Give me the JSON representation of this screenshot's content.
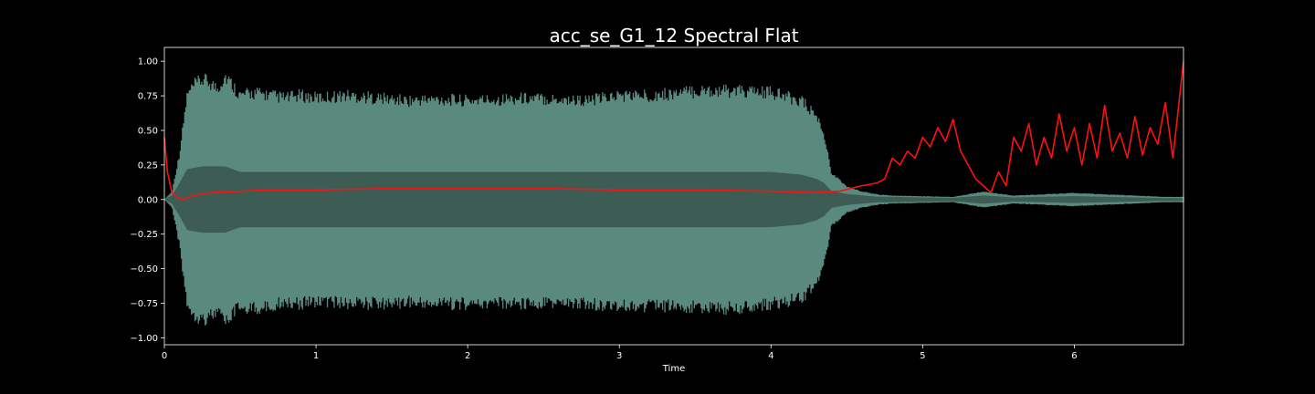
{
  "chart_data": {
    "type": "line",
    "title": "acc_se_G1_12 Spectral Flat",
    "xlabel": "Time",
    "ylabel": "",
    "xlim": [
      0,
      6.72
    ],
    "ylim": [
      -1.05,
      1.1
    ],
    "grid": false,
    "xticks": [
      0,
      1,
      2,
      3,
      4,
      5,
      6
    ],
    "xtick_labels": [
      "0",
      "1",
      "2",
      "3",
      "4",
      "5",
      "6"
    ],
    "yticks": [
      -1.0,
      -0.75,
      -0.5,
      -0.25,
      0.0,
      0.25,
      0.5,
      0.75,
      1.0
    ],
    "ytick_labels": [
      "−1.00",
      "−0.75",
      "−0.50",
      "−0.25",
      "0.00",
      "0.25",
      "0.50",
      "0.75",
      "1.00"
    ],
    "colors": {
      "background": "#000000",
      "axes_edge": "#ffffff",
      "waveform_outer": "#5a8a7e",
      "waveform_inner": "#3a574f",
      "flatness": "#ff1010"
    },
    "waveform_envelope": {
      "x": [
        0.0,
        0.05,
        0.1,
        0.15,
        0.2,
        0.25,
        0.3,
        0.35,
        0.4,
        0.45,
        0.5,
        0.6,
        0.7,
        0.8,
        0.9,
        1.0,
        1.2,
        1.4,
        1.6,
        1.8,
        2.0,
        2.2,
        2.4,
        2.6,
        2.8,
        3.0,
        3.2,
        3.4,
        3.6,
        3.8,
        4.0,
        4.2,
        4.3,
        4.35,
        4.4,
        4.5,
        4.6,
        4.7,
        4.8,
        5.0,
        5.2,
        5.4,
        5.6,
        5.8,
        6.0,
        6.2,
        6.4,
        6.6,
        6.72
      ],
      "upper": [
        0.0,
        0.06,
        0.35,
        0.8,
        0.88,
        0.92,
        0.9,
        0.85,
        0.95,
        0.88,
        0.8,
        0.82,
        0.8,
        0.78,
        0.8,
        0.78,
        0.8,
        0.78,
        0.76,
        0.77,
        0.76,
        0.77,
        0.78,
        0.77,
        0.76,
        0.8,
        0.8,
        0.82,
        0.84,
        0.83,
        0.82,
        0.76,
        0.64,
        0.5,
        0.2,
        0.1,
        0.06,
        0.04,
        0.03,
        0.025,
        0.02,
        0.06,
        0.03,
        0.04,
        0.05,
        0.04,
        0.03,
        0.02,
        0.02
      ],
      "lower": [
        0.0,
        -0.06,
        -0.35,
        -0.8,
        -0.88,
        -0.92,
        -0.9,
        -0.86,
        -0.95,
        -0.88,
        -0.82,
        -0.84,
        -0.82,
        -0.78,
        -0.8,
        -0.78,
        -0.8,
        -0.8,
        -0.79,
        -0.8,
        -0.8,
        -0.8,
        -0.8,
        -0.8,
        -0.8,
        -0.82,
        -0.82,
        -0.82,
        -0.84,
        -0.83,
        -0.8,
        -0.76,
        -0.64,
        -0.5,
        -0.2,
        -0.1,
        -0.06,
        -0.04,
        -0.03,
        -0.025,
        -0.02,
        -0.06,
        -0.03,
        -0.04,
        -0.05,
        -0.04,
        -0.03,
        -0.02,
        -0.02
      ],
      "inner_upper": [
        0.0,
        0.03,
        0.12,
        0.22,
        0.23,
        0.24,
        0.24,
        0.24,
        0.24,
        0.22,
        0.2,
        0.2,
        0.2,
        0.2,
        0.2,
        0.2,
        0.2,
        0.2,
        0.2,
        0.2,
        0.2,
        0.2,
        0.2,
        0.2,
        0.2,
        0.2,
        0.2,
        0.2,
        0.2,
        0.2,
        0.2,
        0.18,
        0.15,
        0.12,
        0.06,
        0.04,
        0.03,
        0.02,
        0.02,
        0.015,
        0.012,
        0.03,
        0.015,
        0.02,
        0.025,
        0.02,
        0.015,
        0.01,
        0.01
      ]
    },
    "series": [
      {
        "x": [
          0.0,
          0.02,
          0.05,
          0.08,
          0.12,
          0.2,
          0.3,
          0.5,
          0.7,
          1.0,
          1.5,
          2.0,
          2.5,
          3.0,
          3.5,
          4.0,
          4.3,
          4.45,
          4.6,
          4.7,
          4.75,
          4.8,
          4.85,
          4.9,
          4.95,
          5.0,
          5.05,
          5.1,
          5.15,
          5.2,
          5.25,
          5.3,
          5.35,
          5.4,
          5.45,
          5.5,
          5.55,
          5.6,
          5.65,
          5.7,
          5.75,
          5.8,
          5.85,
          5.9,
          5.95,
          6.0,
          6.05,
          6.1,
          6.15,
          6.2,
          6.25,
          6.3,
          6.35,
          6.4,
          6.45,
          6.5,
          6.55,
          6.6,
          6.65,
          6.7,
          6.72
        ],
        "y": [
          0.45,
          0.2,
          0.05,
          0.02,
          0.0,
          0.03,
          0.05,
          0.06,
          0.07,
          0.07,
          0.08,
          0.08,
          0.08,
          0.07,
          0.07,
          0.06,
          0.05,
          0.06,
          0.1,
          0.12,
          0.15,
          0.3,
          0.25,
          0.35,
          0.3,
          0.45,
          0.38,
          0.52,
          0.42,
          0.58,
          0.35,
          0.25,
          0.15,
          0.1,
          0.05,
          0.2,
          0.1,
          0.45,
          0.35,
          0.55,
          0.25,
          0.45,
          0.3,
          0.62,
          0.35,
          0.52,
          0.25,
          0.55,
          0.3,
          0.68,
          0.35,
          0.48,
          0.3,
          0.6,
          0.32,
          0.52,
          0.4,
          0.7,
          0.3,
          0.8,
          1.0
        ]
      }
    ]
  }
}
